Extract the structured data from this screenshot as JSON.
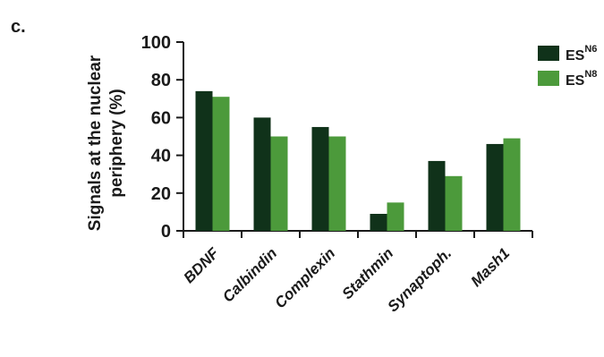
{
  "chart_data": {
    "type": "bar",
    "panel_label": "c.",
    "ylabel_line1": "Signals at the nuclear",
    "ylabel_line2": "periphery (%)",
    "ylim": [
      0,
      100
    ],
    "yticks": [
      0,
      20,
      40,
      60,
      80,
      100
    ],
    "categories": [
      "BDNF",
      "Calbindin",
      "Complexin",
      "Stathmin",
      "Synaptoph.",
      "Mash1"
    ],
    "series": [
      {
        "name": "ES",
        "superscript": "N6",
        "color": "#10321a",
        "values": [
          74,
          60,
          55,
          9,
          37,
          46
        ]
      },
      {
        "name": "ES",
        "superscript": "N8",
        "color": "#4c9a3b",
        "values": [
          71,
          50,
          50,
          15,
          29,
          49
        ]
      }
    ],
    "legend_position": "top-right",
    "grid": false
  }
}
